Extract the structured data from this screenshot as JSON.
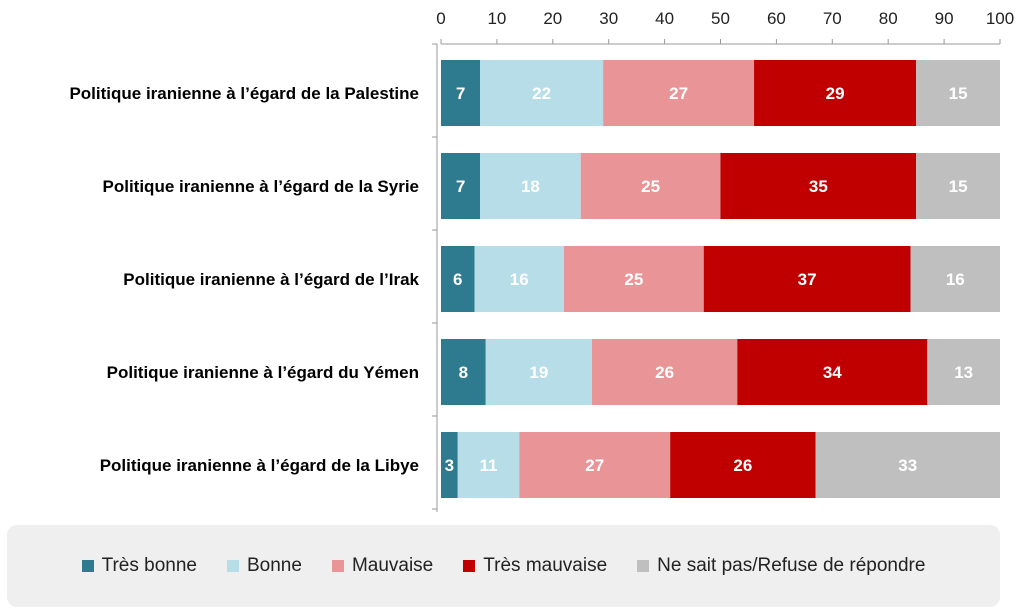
{
  "chart_data": {
    "type": "bar",
    "orientation": "horizontal",
    "stacked": true,
    "categories": [
      "Politique iranienne à l’égard de la Palestine",
      "Politique iranienne à l’égard de la Syrie",
      "Politique iranienne à l’égard de l’Irak",
      "Politique iranienne à l’égard du Yémen",
      "Politique iranienne à l’égard de la Libye"
    ],
    "series": [
      {
        "name": "Très bonne",
        "color": "#2e7b8f",
        "values": [
          7,
          7,
          6,
          8,
          3
        ]
      },
      {
        "name": "Bonne",
        "color": "#b7dde8",
        "values": [
          22,
          18,
          16,
          19,
          11
        ]
      },
      {
        "name": "Mauvaise",
        "color": "#e99597",
        "values": [
          27,
          25,
          25,
          26,
          27
        ]
      },
      {
        "name": "Très mauvaise",
        "color": "#c00000",
        "values": [
          29,
          35,
          37,
          34,
          26
        ]
      },
      {
        "name": "Ne sait pas/Refuse de répondre",
        "color": "#bfbfbf",
        "values": [
          15,
          15,
          16,
          13,
          33
        ]
      }
    ],
    "xlim": [
      0,
      100
    ],
    "xticks": [
      "0",
      "10",
      "20",
      "30",
      "40",
      "50",
      "60",
      "70",
      "80",
      "90",
      "100"
    ],
    "x_axis_position": "top",
    "grid": false,
    "legend_position": "bottom"
  }
}
